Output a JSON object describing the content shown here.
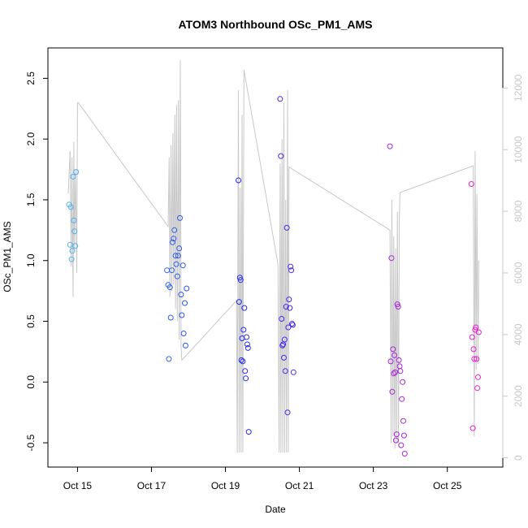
{
  "chart_data": {
    "type": "scatter",
    "title": "ATOM3 Northbound OSc_PM1_AMS",
    "xlabel": "Date",
    "ylabel": "OSc_PM1_AMS",
    "x_unit": "days since Oct 1",
    "xlim": [
      14.2,
      26.5
    ],
    "ylim": [
      -0.7,
      2.75
    ],
    "y_right_lim": [
      -300,
      13300
    ],
    "x_ticks": [
      {
        "value": 15,
        "label": "Oct 15"
      },
      {
        "value": 17,
        "label": "Oct 17"
      },
      {
        "value": 19,
        "label": "Oct 19"
      },
      {
        "value": 21,
        "label": "Oct 21"
      },
      {
        "value": 23,
        "label": "Oct 23"
      },
      {
        "value": 25,
        "label": "Oct 25"
      }
    ],
    "y_ticks": [
      {
        "value": -0.5,
        "label": "-0.5"
      },
      {
        "value": 0.0,
        "label": "0.0"
      },
      {
        "value": 0.5,
        "label": "0.5"
      },
      {
        "value": 1.0,
        "label": "1.0"
      },
      {
        "value": 1.5,
        "label": "1.5"
      },
      {
        "value": 2.0,
        "label": "2.0"
      },
      {
        "value": 2.5,
        "label": "2.5"
      }
    ],
    "y_right_ticks": [
      {
        "value": 0,
        "label": "0"
      },
      {
        "value": 2000,
        "label": "2000"
      },
      {
        "value": 4000,
        "label": "4000"
      },
      {
        "value": 6000,
        "label": "6000"
      },
      {
        "value": 8000,
        "label": "8000"
      },
      {
        "value": 10000,
        "label": "10000"
      },
      {
        "value": 12000,
        "label": "12000"
      }
    ],
    "colors": {
      "background_line": "#c8c8c8",
      "gradient_start": "#4fb4ec",
      "gradient_mid": "#1d2cee",
      "gradient_end": "#f01ed0"
    },
    "series": [
      {
        "name": "background",
        "kind": "line",
        "x": [
          14.75,
          14.8,
          14.83,
          14.85,
          14.88,
          14.9,
          14.92,
          14.95,
          14.98,
          15.0,
          15.02,
          17.45,
          17.48,
          17.5,
          17.53,
          17.55,
          17.58,
          17.6,
          17.63,
          17.65,
          17.68,
          17.7,
          17.73,
          17.75,
          17.78,
          17.8,
          17.82,
          19.3,
          19.32,
          19.35,
          19.37,
          19.4,
          19.42,
          19.45,
          19.47,
          19.5,
          20.42,
          20.45,
          20.48,
          20.5,
          20.53,
          20.55,
          20.58,
          20.6,
          20.63,
          20.65,
          20.68,
          20.7,
          20.72,
          23.45,
          23.48,
          23.5,
          23.53,
          23.55,
          23.58,
          23.6,
          23.63,
          23.65,
          23.68,
          23.7,
          23.72,
          25.7,
          25.73,
          25.75,
          25.78,
          25.8,
          25.83,
          25.85
        ],
        "y": [
          1.55,
          1.9,
          0.95,
          1.85,
          0.7,
          1.98,
          1.1,
          1.75,
          0.9,
          2.3,
          2.3,
          1.28,
          1.85,
          0.7,
          1.95,
          0.75,
          2.05,
          0.8,
          2.2,
          0.6,
          2.28,
          0.5,
          2.32,
          0.35,
          2.65,
          0.3,
          0.18,
          0.67,
          -0.58,
          2.4,
          -0.58,
          1.6,
          -0.58,
          2.2,
          -0.58,
          2.57,
          0.97,
          -0.58,
          1.8,
          -0.58,
          2.0,
          -0.58,
          2.3,
          -0.58,
          1.5,
          -0.58,
          2.4,
          -0.58,
          1.77,
          1.25,
          -0.5,
          1.5,
          -0.45,
          1.2,
          -0.55,
          1.1,
          -0.5,
          1.4,
          -0.5,
          1.3,
          1.56,
          1.78,
          -0.45,
          1.9,
          0.1,
          1.55,
          0.15,
          1.0
        ]
      },
      {
        "name": "OSc_PM1_AMS",
        "kind": "points",
        "x": [
          14.77,
          14.8,
          14.82,
          14.84,
          14.86,
          14.88,
          14.9,
          14.92,
          14.94,
          14.96,
          17.42,
          17.45,
          17.47,
          17.5,
          17.52,
          17.55,
          17.57,
          17.6,
          17.62,
          17.65,
          17.67,
          17.7,
          17.72,
          17.75,
          17.77,
          17.8,
          17.82,
          17.85,
          17.87,
          17.9,
          17.92,
          17.95,
          19.35,
          19.37,
          19.39,
          19.41,
          19.43,
          19.45,
          19.47,
          19.49,
          19.51,
          19.53,
          19.55,
          19.57,
          19.59,
          19.61,
          19.63,
          20.48,
          20.5,
          20.52,
          20.54,
          20.56,
          20.58,
          20.6,
          20.62,
          20.64,
          20.66,
          20.68,
          20.7,
          20.72,
          20.74,
          20.76,
          20.78,
          20.8,
          20.82,
          20.84,
          23.45,
          23.47,
          23.49,
          23.51,
          23.53,
          23.55,
          23.57,
          23.59,
          23.61,
          23.63,
          23.65,
          23.67,
          23.69,
          23.71,
          23.73,
          23.75,
          23.77,
          23.79,
          23.81,
          23.83,
          23.85,
          25.65,
          25.67,
          25.69,
          25.71,
          25.73,
          25.75,
          25.77,
          25.79,
          25.81,
          25.83,
          25.85
        ],
        "y": [
          1.46,
          1.13,
          1.44,
          1.01,
          1.08,
          1.69,
          1.33,
          1.24,
          1.12,
          1.73,
          0.92,
          0.8,
          0.19,
          0.78,
          0.53,
          0.92,
          1.15,
          1.18,
          1.25,
          1.04,
          0.97,
          0.87,
          1.04,
          1.1,
          1.35,
          0.72,
          0.55,
          0.96,
          0.4,
          0.65,
          0.3,
          0.77,
          1.66,
          0.66,
          0.86,
          0.84,
          0.18,
          0.36,
          0.17,
          0.43,
          0.61,
          0.09,
          0.03,
          0.37,
          0.31,
          0.28,
          -0.41,
          2.33,
          1.86,
          0.52,
          0.3,
          0.31,
          0.2,
          0.35,
          0.09,
          0.62,
          1.27,
          -0.25,
          0.45,
          0.68,
          0.61,
          0.95,
          0.92,
          0.48,
          0.47,
          0.08,
          1.94,
          0.17,
          1.02,
          -0.08,
          0.27,
          0.07,
          0.22,
          0.08,
          -0.48,
          -0.43,
          0.64,
          0.62,
          0.18,
          0.13,
          0.09,
          -0.52,
          -0.14,
          0.0,
          -0.32,
          -0.44,
          -0.59,
          1.63,
          0.37,
          -0.38,
          0.27,
          0.19,
          0.43,
          0.45,
          0.19,
          -0.05,
          0.04,
          0.41
        ]
      }
    ]
  }
}
